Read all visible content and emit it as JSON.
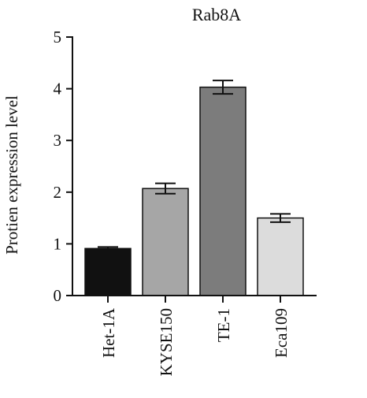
{
  "chart_data": {
    "type": "bar",
    "title": "Rab8A",
    "ylabel": "Protien expression level",
    "xlabel": "",
    "ylim": [
      0,
      5
    ],
    "yticks": [
      0,
      1,
      2,
      3,
      4,
      5
    ],
    "categories": [
      "Het-1A",
      "KYSE150",
      "TE-1",
      "Eca109"
    ],
    "values": [
      0.91,
      2.07,
      4.03,
      1.5
    ],
    "errors": [
      0.03,
      0.1,
      0.13,
      0.08
    ],
    "colors": [
      "#111111",
      "#a6a6a6",
      "#7c7c7c",
      "#dcdcdc"
    ],
    "grid": false
  }
}
